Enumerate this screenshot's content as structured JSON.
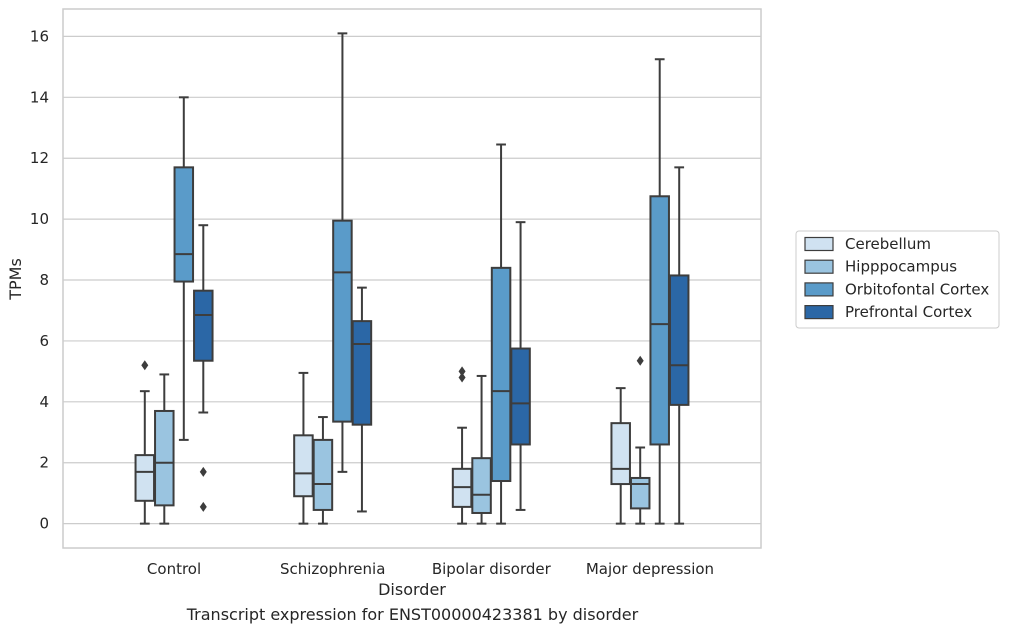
{
  "caption": "Transcript expression for ENST00000423381 by disorder",
  "chart_data": {
    "type": "box",
    "xlabel": "Disorder",
    "ylabel": "TPMs",
    "ylim": [
      -0.8,
      16.9
    ],
    "yticks": [
      0,
      2,
      4,
      6,
      8,
      10,
      12,
      14,
      16
    ],
    "grid": "horizontal",
    "legend_position": "right",
    "categories": [
      "Control",
      "Schizophrenia",
      "Bipolar disorder",
      "Major depression"
    ],
    "series": [
      {
        "name": "Cerebellum",
        "color": "#d0e2f1",
        "boxes": [
          {
            "whisker_low": 0.0,
            "q1": 0.75,
            "median": 1.7,
            "q3": 2.25,
            "whisker_high": 4.35,
            "outliers": [
              5.2
            ]
          },
          {
            "whisker_low": 0.0,
            "q1": 0.9,
            "median": 1.65,
            "q3": 2.9,
            "whisker_high": 4.95,
            "outliers": []
          },
          {
            "whisker_low": 0.0,
            "q1": 0.55,
            "median": 1.2,
            "q3": 1.8,
            "whisker_high": 3.15,
            "outliers": [
              4.8,
              5.0
            ]
          },
          {
            "whisker_low": 0.0,
            "q1": 1.3,
            "median": 1.8,
            "q3": 3.3,
            "whisker_high": 4.45,
            "outliers": []
          }
        ]
      },
      {
        "name": "Hipppocampus",
        "color": "#9ac4e0",
        "boxes": [
          {
            "whisker_low": 0.0,
            "q1": 0.6,
            "median": 2.0,
            "q3": 3.7,
            "whisker_high": 4.9,
            "outliers": []
          },
          {
            "whisker_low": 0.0,
            "q1": 0.45,
            "median": 1.3,
            "q3": 2.75,
            "whisker_high": 3.5,
            "outliers": []
          },
          {
            "whisker_low": 0.0,
            "q1": 0.35,
            "median": 0.95,
            "q3": 2.15,
            "whisker_high": 4.85,
            "outliers": []
          },
          {
            "whisker_low": 0.0,
            "q1": 0.5,
            "median": 1.3,
            "q3": 1.5,
            "whisker_high": 2.5,
            "outliers": [
              5.35
            ]
          }
        ]
      },
      {
        "name": "Orbitofontal Cortex",
        "color": "#5a9bc9",
        "boxes": [
          {
            "whisker_low": 2.75,
            "q1": 7.95,
            "median": 8.85,
            "q3": 11.7,
            "whisker_high": 14.0,
            "outliers": []
          },
          {
            "whisker_low": 1.7,
            "q1": 3.35,
            "median": 8.25,
            "q3": 9.95,
            "whisker_high": 16.1,
            "outliers": []
          },
          {
            "whisker_low": 0.0,
            "q1": 1.4,
            "median": 4.35,
            "q3": 8.4,
            "whisker_high": 12.45,
            "outliers": []
          },
          {
            "whisker_low": 0.0,
            "q1": 2.6,
            "median": 6.55,
            "q3": 10.75,
            "whisker_high": 15.25,
            "outliers": []
          }
        ]
      },
      {
        "name": "Prefrontal Cortex",
        "color": "#2b67a6",
        "boxes": [
          {
            "whisker_low": 3.65,
            "q1": 5.35,
            "median": 6.85,
            "q3": 7.65,
            "whisker_high": 9.8,
            "outliers": [
              1.7,
              0.55
            ]
          },
          {
            "whisker_low": 0.4,
            "q1": 3.25,
            "median": 5.9,
            "q3": 6.65,
            "whisker_high": 7.75,
            "outliers": []
          },
          {
            "whisker_low": 0.45,
            "q1": 2.6,
            "median": 3.95,
            "q3": 5.75,
            "whisker_high": 9.9,
            "outliers": []
          },
          {
            "whisker_low": 0.0,
            "q1": 3.9,
            "median": 5.2,
            "q3": 8.15,
            "whisker_high": 11.7,
            "outliers": []
          }
        ]
      }
    ]
  }
}
